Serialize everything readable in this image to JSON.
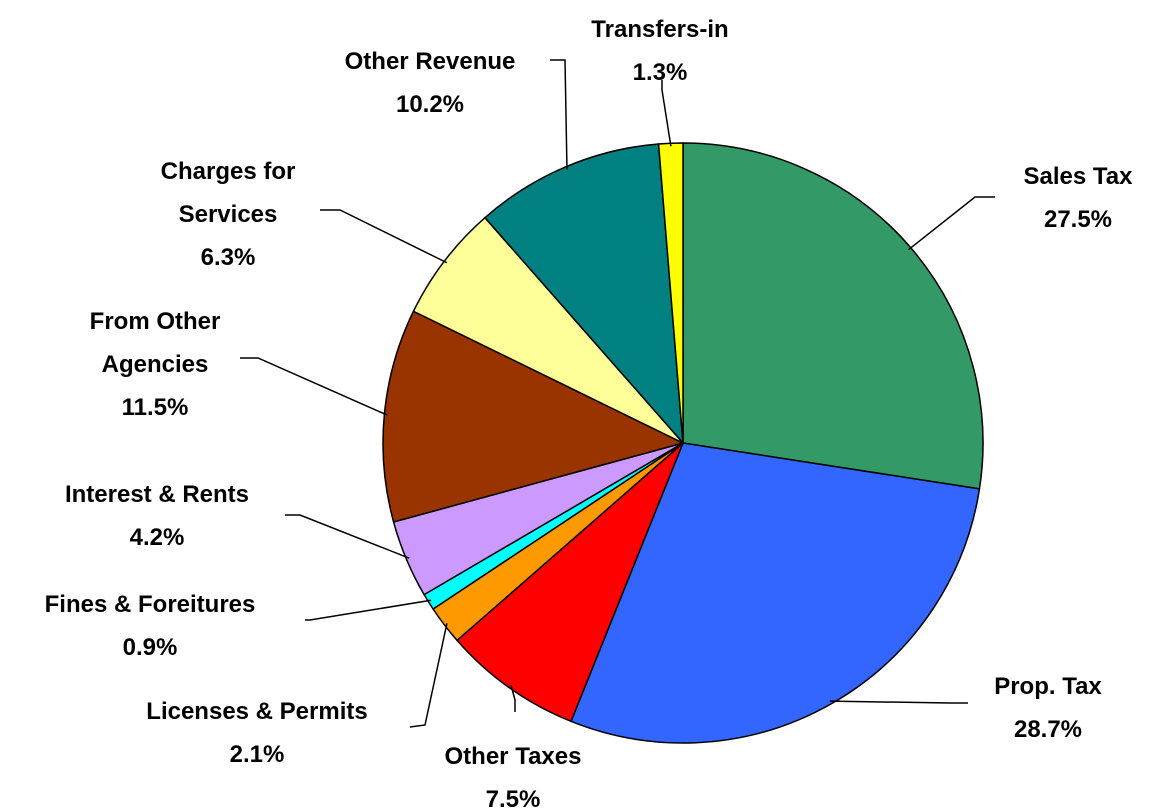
{
  "chart_data": {
    "type": "pie",
    "categories": [
      "Sales Tax",
      "Prop. Tax",
      "Other Taxes",
      "Licenses & Permits",
      "Fines & Foreitures",
      "Interest & Rents",
      "From Other Agencies",
      "Charges for Services",
      "Other Revenue",
      "Transfers-in"
    ],
    "values": [
      27.5,
      28.7,
      7.5,
      2.1,
      0.9,
      4.2,
      11.5,
      6.3,
      10.2,
      1.3
    ],
    "value_labels": [
      "27.5%",
      "28.7%",
      "7.5%",
      "2.1%",
      "0.9%",
      "4.2%",
      "11.5%",
      "6.3%",
      "10.2%",
      "1.3%"
    ],
    "colors": [
      "#339966",
      "#3366ff",
      "#ff0000",
      "#ff9900",
      "#00ffff",
      "#cc99ff",
      "#993300",
      "#ffff99",
      "#008080",
      "#ffff00"
    ]
  }
}
